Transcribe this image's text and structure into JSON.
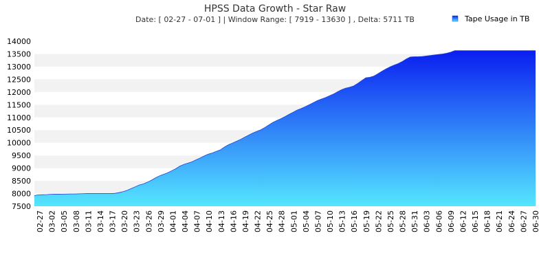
{
  "chart_data": {
    "type": "area",
    "title": "HPSS Data Growth - Star Raw",
    "subtitle": "Date: [ 02-27  -  07-01 ] | Window Range: [ 7919 - 13630 ] ,  Delta: 5711 TB",
    "legend": {
      "label": "Tape Usage in TB",
      "position": "top-right"
    },
    "ylim": [
      7500,
      14000
    ],
    "yticks": [
      7500,
      8000,
      8500,
      9000,
      9500,
      10000,
      10500,
      11000,
      11500,
      12000,
      12500,
      13000,
      13500,
      14000
    ],
    "xticks": [
      "02-27",
      "03-02",
      "03-05",
      "03-08",
      "03-11",
      "03-14",
      "03-17",
      "03-20",
      "03-23",
      "03-26",
      "03-29",
      "04-01",
      "04-04",
      "04-07",
      "04-10",
      "04-13",
      "04-16",
      "04-19",
      "04-22",
      "04-25",
      "04-28",
      "05-01",
      "05-04",
      "05-07",
      "05-10",
      "05-13",
      "05-16",
      "05-19",
      "05-22",
      "05-25",
      "05-28",
      "05-31",
      "06-03",
      "06-06",
      "06-09",
      "06-12",
      "06-15",
      "06-18",
      "06-21",
      "06-24",
      "06-27",
      "06-30"
    ],
    "series": [
      {
        "name": "Tape Usage in TB",
        "x": [
          0,
          1,
          2,
          3,
          4,
          5,
          6,
          7,
          8,
          9,
          10,
          11,
          12,
          13,
          14,
          15,
          16,
          17,
          18,
          19,
          20,
          21,
          22,
          23,
          24,
          25,
          26,
          27,
          28,
          29,
          30,
          31,
          32,
          33,
          34,
          35,
          36,
          37,
          38,
          39,
          40,
          41,
          42,
          43,
          44,
          45,
          46,
          47,
          48,
          49,
          50,
          51,
          52,
          53,
          54,
          55,
          56,
          57,
          58,
          59,
          60,
          61,
          62,
          63,
          64,
          65,
          66,
          67,
          68,
          69,
          70,
          71,
          72,
          73,
          74,
          75,
          76,
          77,
          78,
          79,
          80,
          81,
          82,
          83,
          84,
          85,
          86,
          87,
          88,
          89,
          90,
          91,
          92,
          93,
          94,
          95,
          96,
          97,
          98,
          99,
          100,
          101,
          102,
          103,
          104,
          105,
          106,
          107,
          108,
          109,
          110,
          111,
          112,
          113,
          114,
          115,
          116,
          117,
          118,
          119,
          120,
          121,
          122,
          123,
          124
        ],
        "values": [
          7919,
          7950,
          7955,
          7960,
          7970,
          7975,
          7975,
          7978,
          7980,
          7985,
          7985,
          7990,
          7995,
          8000,
          8000,
          8000,
          8000,
          8000,
          8000,
          8000,
          8010,
          8040,
          8080,
          8130,
          8200,
          8270,
          8340,
          8380,
          8450,
          8530,
          8620,
          8700,
          8760,
          8820,
          8900,
          8980,
          9080,
          9150,
          9200,
          9250,
          9330,
          9400,
          9480,
          9550,
          9600,
          9660,
          9720,
          9830,
          9920,
          9990,
          10060,
          10130,
          10220,
          10300,
          10380,
          10450,
          10510,
          10600,
          10700,
          10800,
          10880,
          10950,
          11030,
          11120,
          11200,
          11290,
          11350,
          11420,
          11500,
          11580,
          11660,
          11720,
          11780,
          11850,
          11920,
          12010,
          12090,
          12150,
          12190,
          12240,
          12340,
          12450,
          12560,
          12580,
          12630,
          12720,
          12820,
          12910,
          12990,
          13060,
          13120,
          13200,
          13300,
          13380,
          13390,
          13390,
          13400,
          13420,
          13440,
          13460,
          13480,
          13500,
          13530,
          13570,
          13630,
          13630,
          13630,
          13630,
          13630,
          13630,
          13630,
          13630,
          13630,
          13630,
          13630,
          13630,
          13630,
          13630,
          13630,
          13630,
          13630,
          13630,
          13630,
          13630,
          13630
        ],
        "x_end": 124
      }
    ],
    "x_range": [
      0,
      124
    ],
    "colors": {
      "fill_top": "#0a1ef0",
      "fill_bottom": "#55e6ff",
      "band": "#f2f2f2",
      "grid": "#ffffff"
    }
  }
}
